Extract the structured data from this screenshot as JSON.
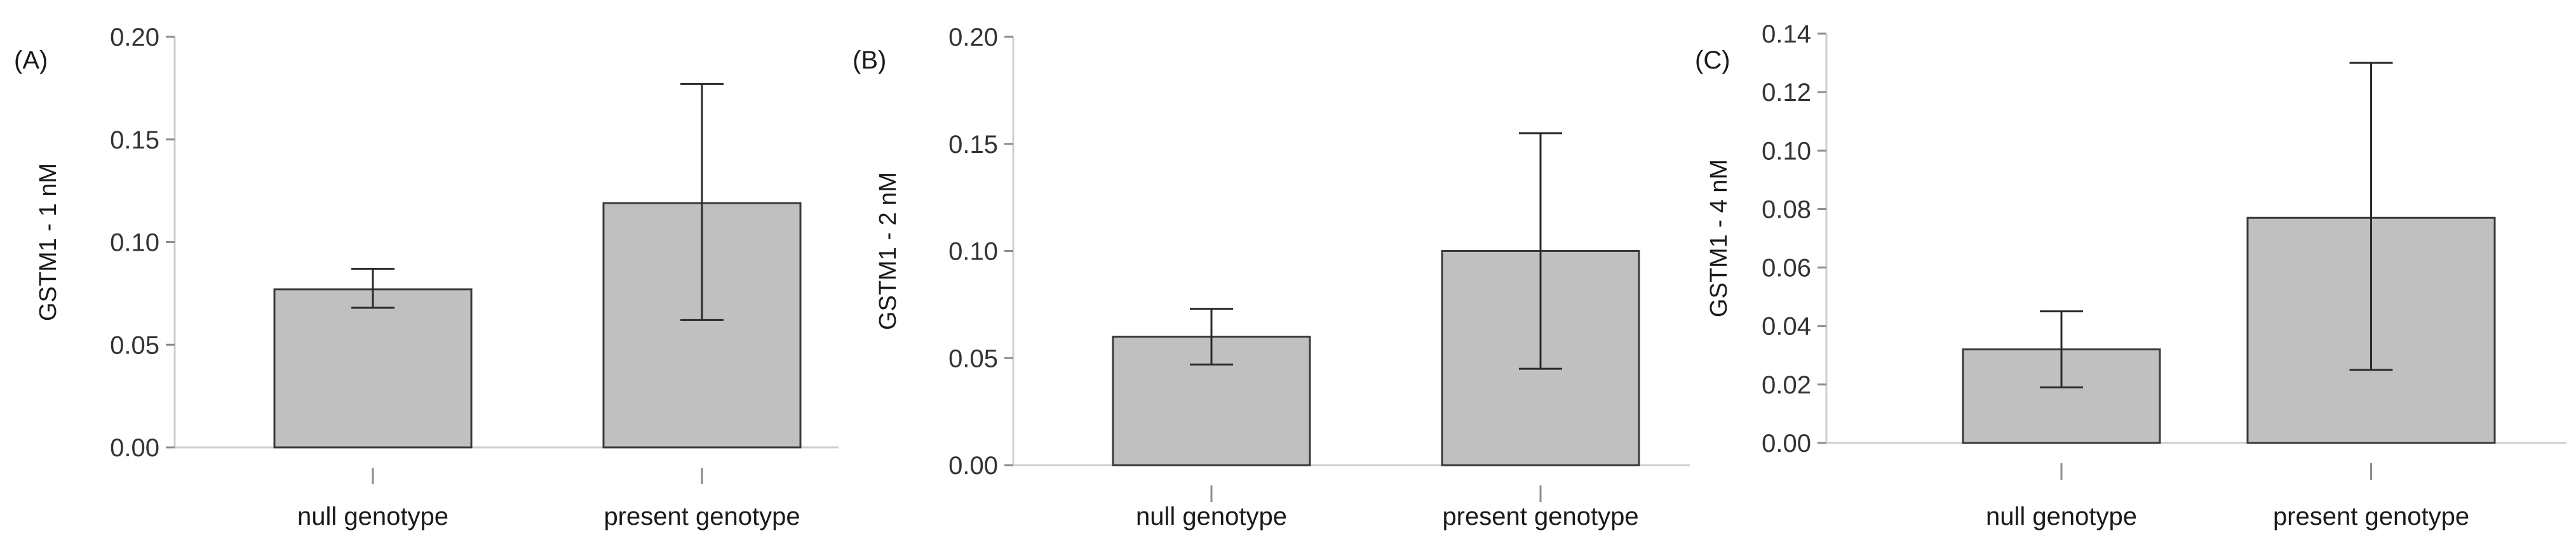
{
  "chart_data": [
    {
      "type": "bar",
      "panel_label": "(A)",
      "ylabel": "GSTM1 - 1 nM",
      "categories": [
        "null genotype",
        "present genotype"
      ],
      "values": [
        0.077,
        0.119
      ],
      "error_low": [
        0.068,
        0.062
      ],
      "error_high": [
        0.087,
        0.177
      ],
      "ylim": [
        0,
        0.2
      ],
      "yticks": [
        "0.00",
        "0.05",
        "0.10",
        "0.15",
        "0.20"
      ],
      "bar_color": "#c0c0c0"
    },
    {
      "type": "bar",
      "panel_label": "(B)",
      "ylabel": "GSTM1 - 2 nM",
      "categories": [
        "null genotype",
        "present genotype"
      ],
      "values": [
        0.06,
        0.1
      ],
      "error_low": [
        0.047,
        0.045
      ],
      "error_high": [
        0.073,
        0.155
      ],
      "ylim": [
        0,
        0.2
      ],
      "yticks": [
        "0.00",
        "0.05",
        "0.10",
        "0.15",
        "0.20"
      ],
      "bar_color": "#c0c0c0"
    },
    {
      "type": "bar",
      "panel_label": "(C)",
      "ylabel": "GSTM1 - 4 nM",
      "categories": [
        "null genotype",
        "present genotype"
      ],
      "values": [
        0.032,
        0.077
      ],
      "error_low": [
        0.019,
        0.025
      ],
      "error_high": [
        0.045,
        0.13
      ],
      "ylim": [
        0,
        0.14
      ],
      "yticks": [
        "0.00",
        "0.02",
        "0.04",
        "0.06",
        "0.08",
        "0.10",
        "0.12",
        "0.14"
      ],
      "bar_color": "#c0c0c0"
    }
  ]
}
